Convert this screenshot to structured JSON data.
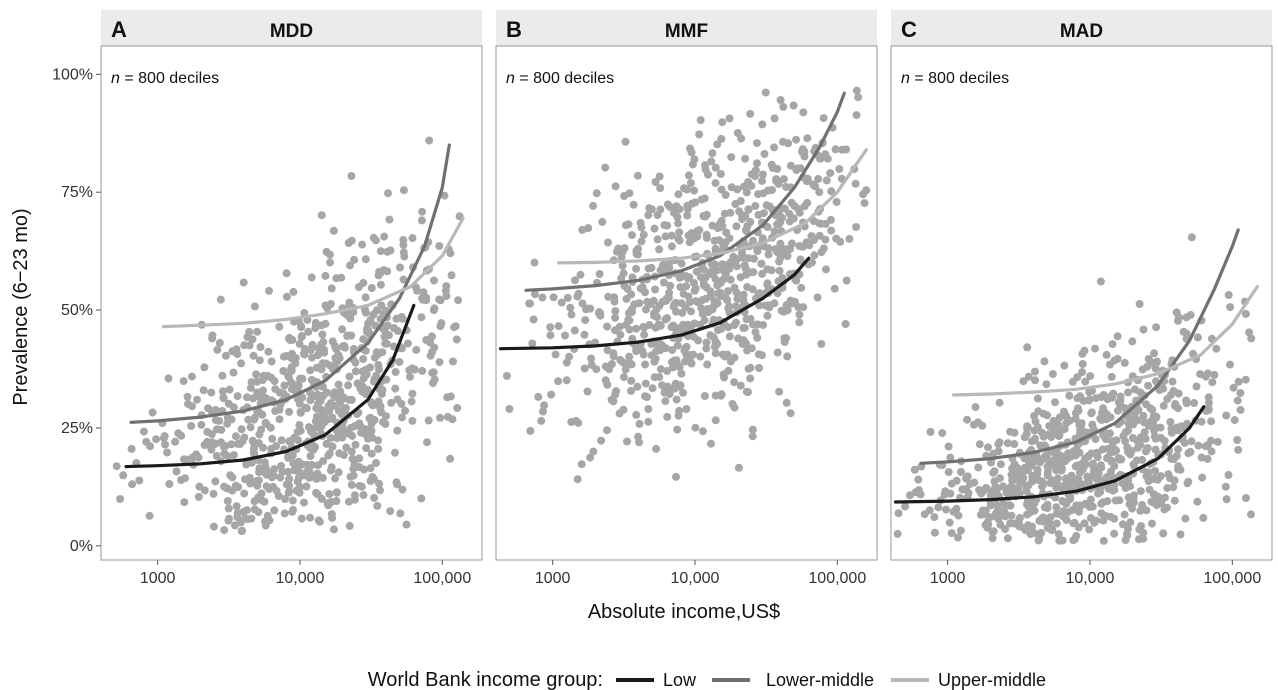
{
  "chart_data": {
    "type": "scatter",
    "x_label": "Absolute income,US$",
    "y_label": "Prevalence (6−23 mo)",
    "x_scale": "log10",
    "x_range": [
      400,
      190000
    ],
    "y_range": [
      -3,
      106
    ],
    "x_ticks": [
      1000,
      10000,
      100000
    ],
    "x_tick_labels": [
      "1000",
      "10,000",
      "100,000"
    ],
    "y_ticks": [
      0,
      25,
      50,
      75,
      100
    ],
    "y_tick_labels": [
      "0%",
      "25%",
      "50%",
      "75%",
      "100%"
    ],
    "point_color": "#a6a6a6",
    "legend": {
      "title": "World Bank income group:",
      "placement": "bottom",
      "entries": [
        {
          "name": "Low",
          "color": "#1a1a1a"
        },
        {
          "name": "Lower-middle",
          "color": "#707070"
        },
        {
          "name": "Upper-middle",
          "color": "#b8b8b8"
        }
      ]
    },
    "panels": [
      {
        "letter": "A",
        "title": "MDD",
        "n_label": {
          "italic": "n",
          "rest": " = 800 deciles"
        },
        "cloud": {
          "seed": 11,
          "count": 800,
          "x_min": 500,
          "x_max": 150000,
          "log_x_center": 4.15,
          "log_x_sd": 0.55,
          "y_base": 17,
          "y_amp": 36,
          "y_rate": 2.1,
          "y_sd": 10,
          "y_sd_grow": 7,
          "y_min": 3,
          "y_max": 90
        },
        "series": [
          {
            "name": "Low",
            "x": [
              600,
              1000,
              2000,
              4000,
              8000,
              15000,
              30000,
              45000,
              63000
            ],
            "y": [
              16.8,
              17.0,
              17.4,
              18.2,
              20.0,
              23.5,
              31.0,
              39.5,
              51.0
            ]
          },
          {
            "name": "Lower-middle",
            "x": [
              650,
              1000,
              2000,
              4000,
              8000,
              15000,
              30000,
              50000,
              75000,
              100000,
              112000
            ],
            "y": [
              26.2,
              26.5,
              27.3,
              28.6,
              31.0,
              35.0,
              43.0,
              52.5,
              63.5,
              76.0,
              85.0
            ]
          },
          {
            "name": "Upper-middle",
            "x": [
              1100,
              2000,
              4000,
              8000,
              15000,
              30000,
              60000,
              100000,
              140000
            ],
            "y": [
              46.5,
              46.8,
              47.2,
              48.0,
              49.2,
              51.0,
              55.0,
              61.5,
              69.5
            ]
          }
        ]
      },
      {
        "letter": "B",
        "title": "MMF",
        "n_label": {
          "italic": "n",
          "rest": " = 800 deciles"
        },
        "cloud": {
          "seed": 23,
          "count": 800,
          "x_min": 450,
          "x_max": 160000,
          "log_x_center": 4.1,
          "log_x_sd": 0.55,
          "y_base": 40,
          "y_amp": 38,
          "y_rate": 1.7,
          "y_sd": 13,
          "y_sd_grow": 2,
          "y_min": 14,
          "y_max": 97
        },
        "series": [
          {
            "name": "Low",
            "x": [
              430,
              1000,
              2000,
              4000,
              8000,
              15000,
              30000,
              50000,
              63000
            ],
            "y": [
              41.8,
              42.0,
              42.4,
              43.2,
              44.7,
              47.3,
              52.5,
              57.5,
              61.0
            ]
          },
          {
            "name": "Lower-middle",
            "x": [
              650,
              1000,
              2000,
              4000,
              8000,
              15000,
              30000,
              50000,
              75000,
              100000,
              112000
            ],
            "y": [
              54.2,
              54.5,
              55.2,
              56.3,
              58.3,
              61.5,
              68.0,
              76.0,
              84.5,
              92.0,
              96.0
            ]
          },
          {
            "name": "Upper-middle",
            "x": [
              1100,
              2000,
              4000,
              8000,
              15000,
              30000,
              60000,
              100000,
              160000
            ],
            "y": [
              60.0,
              60.1,
              60.4,
              61.0,
              62.0,
              64.2,
              68.5,
              75.0,
              84.0
            ]
          }
        ]
      },
      {
        "letter": "C",
        "title": "MAD",
        "n_label": {
          "italic": "n",
          "rest": " = 800 deciles"
        },
        "cloud": {
          "seed": 37,
          "count": 800,
          "x_min": 420,
          "x_max": 150000,
          "log_x_center": 3.95,
          "log_x_sd": 0.5,
          "y_base": 9,
          "y_amp": 30,
          "y_rate": 2.2,
          "y_sd": 6,
          "y_sd_grow": 9,
          "y_min": 1,
          "y_max": 88
        },
        "series": [
          {
            "name": "Low",
            "x": [
              430,
              1000,
              2000,
              4000,
              8000,
              15000,
              30000,
              50000,
              63000
            ],
            "y": [
              9.3,
              9.5,
              9.8,
              10.4,
              11.6,
              13.8,
              18.5,
              25.0,
              29.5
            ]
          },
          {
            "name": "Lower-middle",
            "x": [
              650,
              1000,
              2000,
              4000,
              8000,
              15000,
              30000,
              50000,
              75000,
              100000,
              110000
            ],
            "y": [
              17.5,
              17.8,
              18.5,
              19.8,
              22.0,
              26.0,
              34.0,
              43.5,
              54.5,
              63.5,
              67.0
            ]
          },
          {
            "name": "Upper-middle",
            "x": [
              1100,
              2000,
              4000,
              8000,
              15000,
              30000,
              60000,
              100000,
              150000
            ],
            "y": [
              32.0,
              32.2,
              32.6,
              33.2,
              34.3,
              36.5,
              40.5,
              47.0,
              55.0
            ]
          }
        ]
      }
    ]
  }
}
